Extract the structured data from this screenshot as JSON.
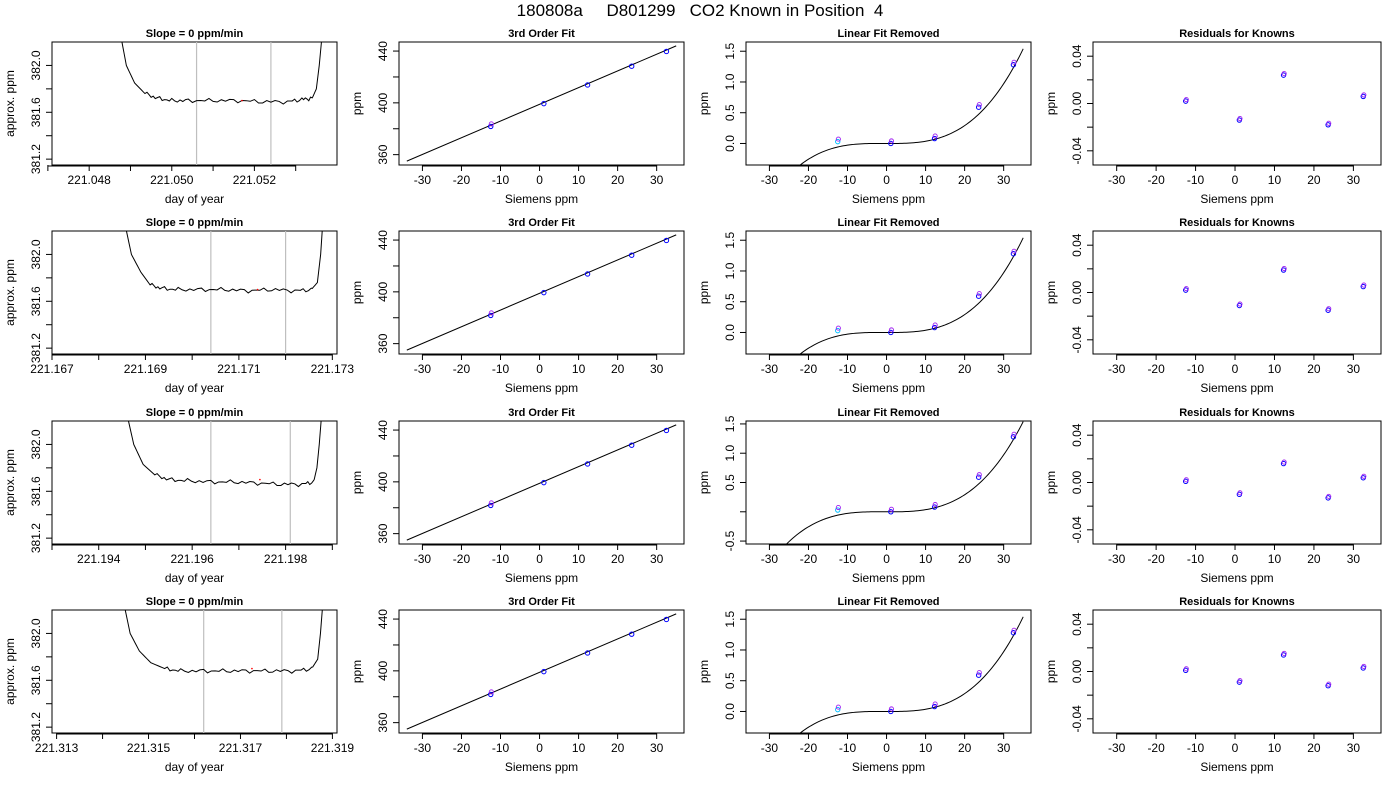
{
  "page": {
    "title": "180808a     D801299   CO2 Known in Position  4"
  },
  "colors": {
    "axis": "#000000",
    "line": "#000000",
    "vline": "#bfbfbf",
    "point": "#0000ff",
    "point_alt": "#a020f0",
    "point_low": "#00bfff",
    "redmark": "#ff0000"
  },
  "chart_data": [
    {
      "type": "line",
      "title": "Slope =  0  ppm/min",
      "xlabel": "day of year",
      "ylabel": "approx. ppm",
      "xlim": [
        221.0471,
        221.054
      ],
      "ylim": [
        381.15,
        382.2
      ],
      "x_ticks": [
        221.047,
        221.048,
        221.049,
        221.05,
        221.051,
        221.052,
        221.053
      ],
      "x_tick_labels": [
        "",
        "221.048",
        "",
        "221.050",
        "",
        "221.052",
        ""
      ],
      "y_ticks": [
        381.2,
        381.4,
        381.6,
        381.8,
        382.0
      ],
      "y_tick_labels": [
        "381.2",
        "",
        "381.6",
        "",
        "382.0"
      ],
      "vlines": [
        221.0506,
        221.0524
      ],
      "series": [
        {
          "x": [
            221.04874,
            221.0489,
            221.0491,
            221.04935,
            221.04965,
            221.05,
            221.0504,
            221.051,
            221.0516,
            221.0522,
            221.0528,
            221.05315,
            221.0534,
            221.0535,
            221.05357,
            221.05365
          ],
          "y": [
            382.3,
            382.0,
            381.85,
            381.76,
            381.72,
            381.7,
            381.7,
            381.7,
            381.7,
            381.69,
            381.69,
            381.71,
            381.72,
            381.8,
            382.0,
            382.3
          ]
        }
      ]
    },
    {
      "type": "scatter",
      "title": "3rd Order Fit",
      "xlabel": "Siemens ppm",
      "ylabel": "ppm",
      "xlim": [
        -36,
        37
      ],
      "ylim": [
        352,
        447
      ],
      "x_ticks": [
        -30,
        -20,
        -10,
        0,
        10,
        20,
        30
      ],
      "x_tick_labels": [
        "-30",
        "-20",
        "-10",
        "0",
        "10",
        "20",
        "30"
      ],
      "y_ticks": [
        360,
        380,
        400,
        420,
        440
      ],
      "y_tick_labels": [
        "360",
        "",
        "400",
        "",
        "440"
      ],
      "fit_line": {
        "x": [
          -34,
          35
        ],
        "y": [
          355,
          444
        ]
      },
      "points": {
        "x": [
          -12.5,
          1.1,
          12.3,
          23.6,
          32.5
        ],
        "y": [
          381.8,
          399.4,
          413.8,
          428.3,
          439.7
        ]
      }
    },
    {
      "type": "scatter",
      "title": "Linear Fit Removed",
      "xlabel": "Siemens ppm",
      "ylabel": "ppm",
      "xlim": [
        -36,
        37
      ],
      "ylim": [
        -0.35,
        1.65
      ],
      "x_ticks": [
        -30,
        -20,
        -10,
        0,
        10,
        20,
        30
      ],
      "x_tick_labels": [
        "-30",
        "-20",
        "-10",
        "0",
        "10",
        "20",
        "30"
      ],
      "y_ticks": [
        0.0,
        0.5,
        1.0,
        1.5
      ],
      "y_tick_labels": [
        "0.0",
        "0.5",
        "1.0",
        "1.5"
      ],
      "curve": {
        "cubic": [
          0.0,
          -0.000305,
          4.34e-05,
          3.49e-05
        ],
        "x_range": [
          -33,
          35
        ]
      },
      "points": {
        "x": [
          -12.5,
          1.1,
          12.3,
          23.6,
          32.5
        ],
        "y": [
          0.03,
          0.0,
          0.08,
          0.59,
          1.28
        ]
      }
    },
    {
      "type": "scatter",
      "title": "Residuals for Knowns",
      "xlabel": "Siemens ppm",
      "ylabel": "ppm",
      "xlim": [
        -36,
        37
      ],
      "ylim": [
        -0.052,
        0.052
      ],
      "x_ticks": [
        -30,
        -20,
        -10,
        0,
        10,
        20,
        30
      ],
      "x_tick_labels": [
        "-30",
        "-20",
        "-10",
        "0",
        "10",
        "20",
        "30"
      ],
      "y_ticks": [
        -0.04,
        -0.02,
        0.0,
        0.02,
        0.04
      ],
      "y_tick_labels": [
        "-0.04",
        "",
        "0.00",
        "",
        "0.04"
      ],
      "points": {
        "x": [
          -12.5,
          1.1,
          12.3,
          23.6,
          32.5
        ],
        "y": [
          0.002,
          -0.014,
          0.024,
          -0.018,
          0.006
        ]
      }
    },
    {
      "type": "line",
      "title": "Slope =  0  ppm/min",
      "xlabel": "day of year",
      "ylabel": "approx. ppm",
      "xlim": [
        221.167,
        221.1731
      ],
      "ylim": [
        381.15,
        382.2
      ],
      "x_ticks": [
        221.167,
        221.168,
        221.169,
        221.17,
        221.171,
        221.172,
        221.173
      ],
      "x_tick_labels": [
        "221.167",
        "",
        "221.169",
        "",
        "221.171",
        "",
        "221.173"
      ],
      "y_ticks": [
        381.2,
        381.4,
        381.6,
        381.8,
        382.0
      ],
      "y_tick_labels": [
        "381.2",
        "",
        "381.6",
        "",
        "382.0"
      ],
      "vlines": [
        221.1704,
        221.172
      ],
      "series": [
        {
          "x": [
            221.16854,
            221.1687,
            221.1689,
            221.1691,
            221.16935,
            221.1697,
            221.1702,
            221.1707,
            221.1712,
            221.1717,
            221.1722,
            221.17255,
            221.17268,
            221.17275,
            221.1728
          ],
          "y": [
            382.3,
            382.0,
            381.85,
            381.74,
            381.71,
            381.7,
            381.7,
            381.7,
            381.69,
            381.7,
            381.69,
            381.7,
            381.76,
            382.0,
            382.3
          ]
        }
      ]
    },
    {
      "type": "scatter",
      "title": "3rd Order Fit",
      "xlabel": "Siemens ppm",
      "ylabel": "ppm",
      "xlim": [
        -36,
        37
      ],
      "ylim": [
        352,
        447
      ],
      "x_ticks": [
        -30,
        -20,
        -10,
        0,
        10,
        20,
        30
      ],
      "x_tick_labels": [
        "-30",
        "-20",
        "-10",
        "0",
        "10",
        "20",
        "30"
      ],
      "y_ticks": [
        360,
        380,
        400,
        420,
        440
      ],
      "y_tick_labels": [
        "360",
        "",
        "400",
        "",
        "440"
      ],
      "fit_line": {
        "x": [
          -34,
          35
        ],
        "y": [
          355,
          444
        ]
      },
      "points": {
        "x": [
          -12.5,
          1.1,
          12.3,
          23.6,
          32.5
        ],
        "y": [
          381.8,
          399.4,
          413.8,
          428.3,
          439.7
        ]
      }
    },
    {
      "type": "scatter",
      "title": "Linear Fit Removed",
      "xlabel": "Siemens ppm",
      "ylabel": "ppm",
      "xlim": [
        -36,
        37
      ],
      "ylim": [
        -0.35,
        1.65
      ],
      "x_ticks": [
        -30,
        -20,
        -10,
        0,
        10,
        20,
        30
      ],
      "x_tick_labels": [
        "-30",
        "-20",
        "-10",
        "0",
        "10",
        "20",
        "30"
      ],
      "y_ticks": [
        0.0,
        0.5,
        1.0,
        1.5
      ],
      "y_tick_labels": [
        "0.0",
        "0.5",
        "1.0",
        "1.5"
      ],
      "curve": {
        "cubic": [
          0.0,
          -0.000305,
          4.34e-05,
          3.49e-05
        ],
        "x_range": [
          -33,
          35
        ]
      },
      "points": {
        "x": [
          -12.5,
          1.1,
          12.3,
          23.6,
          32.5
        ],
        "y": [
          0.03,
          0.0,
          0.08,
          0.59,
          1.28
        ]
      }
    },
    {
      "type": "scatter",
      "title": "Residuals for Knowns",
      "xlabel": "Siemens ppm",
      "ylabel": "ppm",
      "xlim": [
        -36,
        37
      ],
      "ylim": [
        -0.052,
        0.052
      ],
      "x_ticks": [
        -30,
        -20,
        -10,
        0,
        10,
        20,
        30
      ],
      "x_tick_labels": [
        "-30",
        "-20",
        "-10",
        "0",
        "10",
        "20",
        "30"
      ],
      "y_ticks": [
        -0.04,
        -0.02,
        0.0,
        0.02,
        0.04
      ],
      "y_tick_labels": [
        "-0.04",
        "",
        "0.00",
        "",
        "0.04"
      ],
      "points": {
        "x": [
          -12.5,
          1.1,
          12.3,
          23.6,
          32.5
        ],
        "y": [
          0.002,
          -0.011,
          0.019,
          -0.015,
          0.005
        ]
      }
    },
    {
      "type": "line",
      "title": "Slope =  0  ppm/min",
      "xlabel": "day of year",
      "ylabel": "approx. ppm",
      "xlim": [
        221.193,
        221.1991
      ],
      "ylim": [
        381.15,
        382.2
      ],
      "x_ticks": [
        221.193,
        221.194,
        221.195,
        221.196,
        221.197,
        221.198,
        221.199
      ],
      "x_tick_labels": [
        "",
        "221.194",
        "",
        "221.196",
        "",
        "221.198",
        ""
      ],
      "y_ticks": [
        381.2,
        381.4,
        381.6,
        381.8,
        382.0
      ],
      "y_tick_labels": [
        "381.2",
        "",
        "381.6",
        "",
        "382.0"
      ],
      "vlines": [
        221.1964,
        221.1981
      ],
      "series": [
        {
          "x": [
            221.19458,
            221.19475,
            221.19495,
            221.1952,
            221.1955,
            221.1959,
            221.1964,
            221.1969,
            221.1974,
            221.1979,
            221.19835,
            221.1986,
            221.19867,
            221.19872,
            221.19878
          ],
          "y": [
            382.3,
            382.0,
            381.83,
            381.74,
            381.7,
            381.69,
            381.68,
            381.68,
            381.67,
            381.66,
            381.66,
            381.68,
            381.8,
            382.0,
            382.3
          ]
        }
      ]
    },
    {
      "type": "scatter",
      "title": "3rd Order Fit",
      "xlabel": "Siemens ppm",
      "ylabel": "ppm",
      "xlim": [
        -36,
        37
      ],
      "ylim": [
        352,
        447
      ],
      "x_ticks": [
        -30,
        -20,
        -10,
        0,
        10,
        20,
        30
      ],
      "x_tick_labels": [
        "-30",
        "-20",
        "-10",
        "0",
        "10",
        "20",
        "30"
      ],
      "y_ticks": [
        360,
        380,
        400,
        420,
        440
      ],
      "y_tick_labels": [
        "360",
        "",
        "400",
        "",
        "440"
      ],
      "fit_line": {
        "x": [
          -34,
          35
        ],
        "y": [
          355,
          444
        ]
      },
      "points": {
        "x": [
          -12.5,
          1.1,
          12.3,
          23.6,
          32.5
        ],
        "y": [
          381.8,
          399.4,
          413.8,
          428.3,
          439.7
        ]
      }
    },
    {
      "type": "scatter",
      "title": "Linear Fit Removed",
      "xlabel": "Siemens ppm",
      "ylabel": "ppm",
      "xlim": [
        -36,
        37
      ],
      "ylim": [
        -0.55,
        1.55
      ],
      "x_ticks": [
        -30,
        -20,
        -10,
        0,
        10,
        20,
        30
      ],
      "x_tick_labels": [
        "-30",
        "-20",
        "-10",
        "0",
        "10",
        "20",
        "30"
      ],
      "y_ticks": [
        -0.5,
        0.0,
        0.5,
        1.0,
        1.5
      ],
      "y_tick_labels": [
        "-0.5",
        "",
        "0.5",
        "1.0",
        "1.5"
      ],
      "curve": {
        "cubic": [
          0.0,
          -0.000305,
          4.34e-05,
          3.49e-05
        ],
        "x_range": [
          -33,
          35
        ]
      },
      "points": {
        "x": [
          -12.5,
          1.1,
          12.3,
          23.6,
          32.5
        ],
        "y": [
          0.03,
          0.0,
          0.08,
          0.59,
          1.28
        ]
      }
    },
    {
      "type": "scatter",
      "title": "Residuals for Knowns",
      "xlabel": "Siemens ppm",
      "ylabel": "ppm",
      "xlim": [
        -36,
        37
      ],
      "ylim": [
        -0.052,
        0.052
      ],
      "x_ticks": [
        -30,
        -20,
        -10,
        0,
        10,
        20,
        30
      ],
      "x_tick_labels": [
        "-30",
        "-20",
        "-10",
        "0",
        "10",
        "20",
        "30"
      ],
      "y_ticks": [
        -0.04,
        -0.02,
        0.0,
        0.02,
        0.04
      ],
      "y_tick_labels": [
        "-0.04",
        "",
        "0.00",
        "",
        "0.04"
      ],
      "points": {
        "x": [
          -12.5,
          1.1,
          12.3,
          23.6,
          32.5
        ],
        "y": [
          0.001,
          -0.01,
          0.016,
          -0.013,
          0.004
        ]
      }
    },
    {
      "type": "line",
      "title": "Slope =  0  ppm/min",
      "xlabel": "day of year",
      "ylabel": "approx. ppm",
      "xlim": [
        221.3129,
        221.3191
      ],
      "ylim": [
        381.15,
        382.2
      ],
      "x_ticks": [
        221.313,
        221.314,
        221.315,
        221.316,
        221.317,
        221.318,
        221.319
      ],
      "x_tick_labels": [
        "221.313",
        "",
        "221.315",
        "",
        "221.317",
        "",
        "221.319"
      ],
      "y_ticks": [
        381.2,
        381.4,
        381.6,
        381.8,
        382.0
      ],
      "y_tick_labels": [
        "381.2",
        "",
        "381.6",
        "",
        "382.0"
      ],
      "vlines": [
        221.3162,
        221.3179
      ],
      "series": [
        {
          "x": [
            221.31444,
            221.3146,
            221.3148,
            221.31505,
            221.31535,
            221.3157,
            221.3162,
            221.3167,
            221.3172,
            221.3177,
            221.3182,
            221.31855,
            221.31868,
            221.31874,
            221.3188
          ],
          "y": [
            382.3,
            382.0,
            381.85,
            381.75,
            381.7,
            381.68,
            381.68,
            381.68,
            381.68,
            381.68,
            381.68,
            381.7,
            381.78,
            382.0,
            382.3
          ]
        }
      ]
    },
    {
      "type": "scatter",
      "title": "3rd Order Fit",
      "xlabel": "Siemens ppm",
      "ylabel": "ppm",
      "xlim": [
        -36,
        37
      ],
      "ylim": [
        352,
        447
      ],
      "x_ticks": [
        -30,
        -20,
        -10,
        0,
        10,
        20,
        30
      ],
      "x_tick_labels": [
        "-30",
        "-20",
        "-10",
        "0",
        "10",
        "20",
        "30"
      ],
      "y_ticks": [
        360,
        380,
        400,
        420,
        440
      ],
      "y_tick_labels": [
        "360",
        "",
        "400",
        "",
        "440"
      ],
      "fit_line": {
        "x": [
          -34,
          35
        ],
        "y": [
          355,
          444
        ]
      },
      "points": {
        "x": [
          -12.5,
          1.1,
          12.3,
          23.6,
          32.5
        ],
        "y": [
          381.8,
          399.4,
          413.8,
          428.3,
          439.7
        ]
      }
    },
    {
      "type": "scatter",
      "title": "Linear Fit Removed",
      "xlabel": "Siemens ppm",
      "ylabel": "ppm",
      "xlim": [
        -36,
        37
      ],
      "ylim": [
        -0.35,
        1.65
      ],
      "x_ticks": [
        -30,
        -20,
        -10,
        0,
        10,
        20,
        30
      ],
      "x_tick_labels": [
        "-30",
        "-20",
        "-10",
        "0",
        "10",
        "20",
        "30"
      ],
      "y_ticks": [
        0.0,
        0.5,
        1.0,
        1.5
      ],
      "y_tick_labels": [
        "0.0",
        "0.5",
        "1.0",
        "1.5"
      ],
      "curve": {
        "cubic": [
          0.0,
          -0.000305,
          4.34e-05,
          3.49e-05
        ],
        "x_range": [
          -33,
          35
        ]
      },
      "points": {
        "x": [
          -12.5,
          1.1,
          12.3,
          23.6,
          32.5
        ],
        "y": [
          0.03,
          0.0,
          0.08,
          0.59,
          1.28
        ]
      }
    },
    {
      "type": "scatter",
      "title": "Residuals for Knowns",
      "xlabel": "Siemens ppm",
      "ylabel": "ppm",
      "xlim": [
        -36,
        37
      ],
      "ylim": [
        -0.052,
        0.052
      ],
      "x_ticks": [
        -30,
        -20,
        -10,
        0,
        10,
        20,
        30
      ],
      "x_tick_labels": [
        "-30",
        "-20",
        "-10",
        "0",
        "10",
        "20",
        "30"
      ],
      "y_ticks": [
        -0.04,
        -0.02,
        0.0,
        0.02,
        0.04
      ],
      "y_tick_labels": [
        "-0.04",
        "",
        "0.00",
        "",
        "0.04"
      ],
      "points": {
        "x": [
          -12.5,
          1.1,
          12.3,
          23.6,
          32.5
        ],
        "y": [
          0.001,
          -0.009,
          0.014,
          -0.012,
          0.003
        ]
      }
    }
  ]
}
